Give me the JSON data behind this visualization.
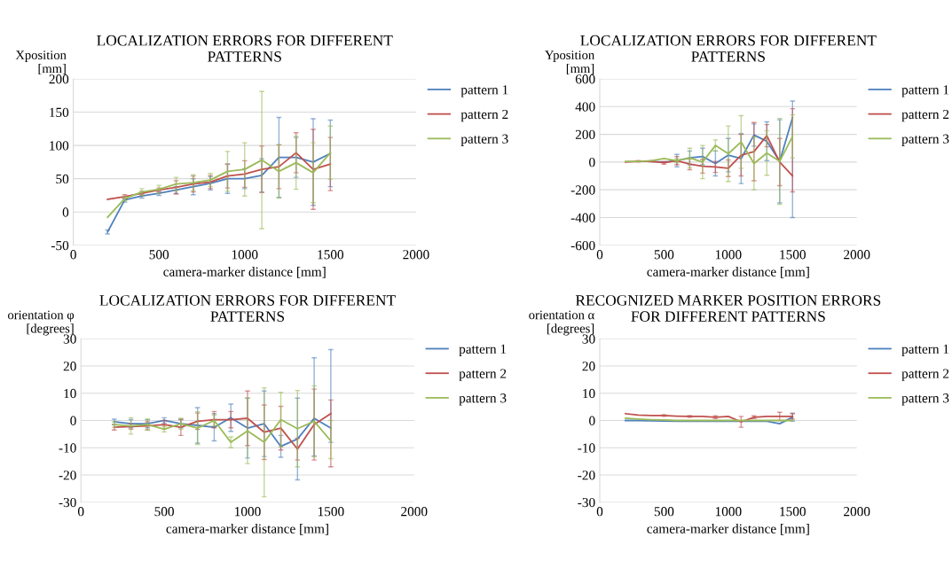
{
  "chart_data": [
    {
      "type": "line",
      "title": "LOCALIZATION ERRORS FOR DIFFERENT\nPATTERNS",
      "ylabel": "Xposition\n[mm]",
      "xlabel": "camera-marker distance [mm]",
      "x": [
        200,
        300,
        400,
        500,
        600,
        700,
        800,
        900,
        1000,
        1100,
        1200,
        1300,
        1400,
        1500
      ],
      "xlim": [
        0,
        2000
      ],
      "xticks": [
        0,
        500,
        1000,
        1500,
        2000
      ],
      "ylim": [
        -50,
        200
      ],
      "yticks": [
        -50,
        0,
        50,
        100,
        150,
        200
      ],
      "grid": "y",
      "legend": "right",
      "series": [
        {
          "name": "pattern 1",
          "color": "#4f81bd",
          "values": [
            -30,
            18,
            24,
            28,
            33,
            38,
            43,
            50,
            50,
            55,
            82,
            82,
            75,
            88
          ],
          "errors": [
            3,
            3,
            3,
            3,
            5,
            12,
            10,
            22,
            15,
            25,
            60,
            30,
            65,
            50
          ]
        },
        {
          "name": "pattern 2",
          "color": "#c0504d",
          "values": [
            19,
            23,
            28,
            33,
            37,
            42,
            45,
            54,
            57,
            64,
            68,
            89,
            64,
            72
          ],
          "errors": [
            null,
            3,
            3,
            3,
            10,
            12,
            10,
            18,
            20,
            35,
            33,
            30,
            60,
            40
          ]
        },
        {
          "name": "pattern 3",
          "color": "#9bbb59",
          "values": [
            -8,
            20,
            30,
            34,
            42,
            44,
            48,
            61,
            64,
            78,
            61,
            74,
            59,
            89
          ],
          "errors": [
            null,
            3,
            5,
            6,
            10,
            12,
            10,
            30,
            40,
            103,
            40,
            40,
            45,
            40
          ]
        }
      ]
    },
    {
      "type": "line",
      "title": "LOCALIZATION ERRORS FOR DIFFERENT\nPATTERNS",
      "ylabel": "Yposition\n[mm]",
      "xlabel": "camera-marker distance [mm]",
      "x": [
        200,
        300,
        400,
        500,
        600,
        700,
        800,
        900,
        1000,
        1100,
        1200,
        1300,
        1400,
        1500
      ],
      "xlim": [
        0,
        2000
      ],
      "xticks": [
        0,
        500,
        1000,
        1500,
        2000
      ],
      "ylim": [
        -600,
        600
      ],
      "yticks": [
        -600,
        -400,
        -200,
        0,
        200,
        400,
        600
      ],
      "grid": "y",
      "legend": "right",
      "series": [
        {
          "name": "pattern 1",
          "color": "#4f81bd",
          "values": [
            null,
            null,
            5,
            0,
            10,
            30,
            40,
            -10,
            50,
            25,
            195,
            150,
            5,
            320
          ],
          "errors": [
            null,
            null,
            null,
            null,
            45,
            50,
            60,
            90,
            120,
            180,
            80,
            140,
            300,
            [
              -400,
              440
            ]
          ]
        },
        {
          "name": "pattern 2",
          "color": "#c0504d",
          "values": [
            0,
            5,
            5,
            -5,
            10,
            -15,
            -30,
            -35,
            -45,
            50,
            75,
            190,
            0,
            -100
          ],
          "errors": [
            null,
            5,
            5,
            10,
            30,
            40,
            50,
            40,
            60,
            150,
            210,
            80,
            170,
            [
              -215,
              385
            ]
          ]
        },
        {
          "name": "pattern 3",
          "color": "#9bbb59",
          "values": [
            5,
            5,
            10,
            25,
            10,
            30,
            0,
            120,
            60,
            145,
            -10,
            65,
            5,
            185
          ],
          "errors": [
            null,
            null,
            null,
            null,
            15,
            70,
            120,
            40,
            200,
            190,
            190,
            160,
            310,
            155
          ]
        }
      ]
    },
    {
      "type": "line",
      "title": "LOCALIZATION ERRORS FOR DIFFERENT\nPATTERNS",
      "ylabel": "orientation φ\n[degrees]",
      "xlabel": "camera-marker distance [mm]",
      "x": [
        200,
        300,
        400,
        500,
        600,
        700,
        800,
        900,
        1000,
        1100,
        1200,
        1300,
        1400,
        1500
      ],
      "xlim": [
        0,
        2000
      ],
      "xticks": [
        0,
        500,
        1000,
        1500,
        2000
      ],
      "ylim": [
        -30,
        30
      ],
      "yticks": [
        -30,
        -20,
        -10,
        0,
        10,
        20,
        30
      ],
      "grid": "y",
      "legend": "right",
      "series": [
        {
          "name": "pattern 1",
          "color": "#4f81bd",
          "values": [
            -0.5,
            -1.2,
            -1.2,
            0,
            -1.2,
            -1.8,
            -2.5,
            1,
            -2.8,
            -1.2,
            -9.5,
            -6.8,
            0.8,
            -2.8
          ],
          "errors": [
            1,
            1.5,
            1.5,
            1,
            1.5,
            6.5,
            5,
            5,
            11,
            12,
            4,
            15,
            [
              -13,
              23
            ],
            [
              -8,
              26
            ]
          ]
        },
        {
          "name": "pattern 2",
          "color": "#c0504d",
          "values": [
            -2.5,
            -2.2,
            -2,
            -1.5,
            -2.5,
            -0.3,
            0.3,
            0.3,
            0.8,
            -4.3,
            -2.8,
            -10.5,
            -1.5,
            2.5
          ],
          "errors": [
            1,
            1,
            1.5,
            1.5,
            3,
            3,
            3,
            3,
            10,
            10,
            8,
            4,
            13,
            [
              -17,
              7.5
            ]
          ]
        },
        {
          "name": "pattern 3",
          "color": "#9bbb59",
          "values": [
            -1.5,
            -2,
            -1.5,
            -3.2,
            -1.2,
            -2.8,
            0,
            -8,
            -3.8,
            -8,
            0.3,
            -3,
            -0.3,
            -7.5
          ],
          "errors": [
            1,
            3,
            2,
            1,
            2,
            6,
            2,
            2,
            12,
            20,
            10,
            14,
            13,
            [
              -14,
              0
            ]
          ]
        }
      ]
    },
    {
      "type": "line",
      "title": "RECOGNIZED MARKER POSITION ERRORS\nFOR DIFFERENT PATTERNS",
      "ylabel": "orientation α\n[degrees]",
      "xlabel": "camera-marker distance [mm]",
      "x": [
        200,
        300,
        400,
        500,
        600,
        700,
        800,
        900,
        1000,
        1100,
        1200,
        1300,
        1400,
        1500
      ],
      "xlim": [
        0,
        2000
      ],
      "xticks": [
        0,
        500,
        1000,
        1500,
        2000
      ],
      "ylim": [
        -30,
        30
      ],
      "yticks": [
        -30,
        -20,
        -10,
        0,
        10,
        20,
        30
      ],
      "grid": "y",
      "legend": "right",
      "series": [
        {
          "name": "pattern 1",
          "color": "#4f81bd",
          "values": [
            0,
            0,
            -0.1,
            -0.2,
            -0.3,
            -0.3,
            -0.3,
            -0.3,
            -0.3,
            -0.3,
            -0.3,
            -0.3,
            -1.2,
            1.2
          ],
          "errors": [
            null,
            null,
            null,
            null,
            null,
            null,
            null,
            null,
            null,
            null,
            null,
            null,
            null,
            1.5
          ]
        },
        {
          "name": "pattern 2",
          "color": "#c0504d",
          "values": [
            2.5,
            2,
            1.8,
            1.8,
            1.6,
            1.5,
            1.5,
            1.2,
            1.5,
            -0.5,
            1.2,
            1.5,
            1.5,
            1.5
          ],
          "errors": [
            null,
            null,
            null,
            0.3,
            null,
            0.3,
            null,
            0.5,
            null,
            2,
            0.5,
            null,
            1.5,
            1
          ]
        },
        {
          "name": "pattern 3",
          "color": "#9bbb59",
          "values": [
            0.8,
            0.5,
            0.3,
            0.2,
            0,
            0,
            0,
            0,
            0,
            0,
            0,
            0,
            0,
            0
          ]
        }
      ]
    }
  ]
}
